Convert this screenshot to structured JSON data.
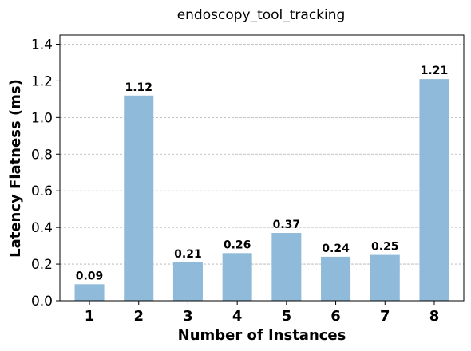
{
  "chart_data": {
    "type": "bar",
    "title": "endoscopy_tool_tracking",
    "xlabel": "Number of Instances",
    "ylabel": "Latency Flatness (ms)",
    "categories": [
      "1",
      "2",
      "3",
      "4",
      "5",
      "6",
      "7",
      "8"
    ],
    "values": [
      0.09,
      1.12,
      0.21,
      0.26,
      0.37,
      0.24,
      0.25,
      1.21
    ],
    "data_labels": [
      "0.09",
      "1.12",
      "0.21",
      "0.26",
      "0.37",
      "0.24",
      "0.25",
      "1.21"
    ],
    "ylim": [
      0,
      1.45
    ],
    "yticks": [
      "0.0",
      "0.2",
      "0.4",
      "0.6",
      "0.8",
      "1.0",
      "1.2",
      "1.4"
    ],
    "ytick_values": [
      0,
      0.2,
      0.4,
      0.6,
      0.8,
      1.0,
      1.2,
      1.4
    ],
    "grid": "horizontal dashed",
    "bar_color": "#8fbad9"
  }
}
